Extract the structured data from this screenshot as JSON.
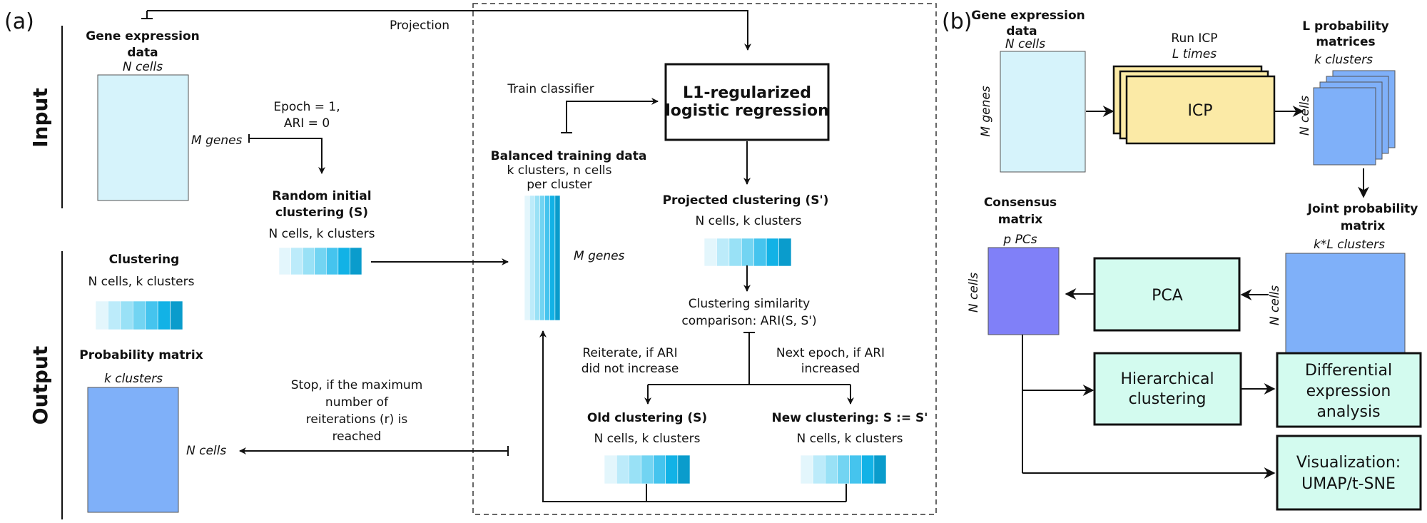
{
  "panel_a": {
    "label": "(a)",
    "input": "Input",
    "output": "Output",
    "projection": "Projection",
    "gene_expr_title_1": "Gene expression",
    "gene_expr_title_2": "data",
    "n_cells": "N cells",
    "m_genes": "M genes",
    "epoch_1": "Epoch = 1,",
    "epoch_2": "ARI = 0",
    "random_1": "Random initial",
    "random_2": "clustering (S)",
    "random_sub": "N cells, k clusters",
    "clustering_title": "Clustering",
    "clustering_sub": "N cells, k clusters",
    "prob_title": "Probability matrix",
    "prob_k": "k clusters",
    "prob_n": "N cells",
    "stop_1": "Stop, if the maximum",
    "stop_2": "number of",
    "stop_3": "reiterations (r) is",
    "stop_4": "reached",
    "train_classifier": "Train classifier",
    "l1_1": "L1-regularized",
    "l1_2": "logistic regression",
    "balanced_title": "Balanced training data",
    "balanced_sub_1": "k clusters, n cells",
    "balanced_sub_2": "per cluster",
    "balanced_genes": "M genes",
    "projected_title": "Projected clustering (S')",
    "projected_sub": "N cells, k clusters",
    "similarity_1": "Clustering similarity",
    "similarity_2": "comparison: ARI(S, S')",
    "reiterate_1": "Reiterate, if ARI",
    "reiterate_2": "did not increase",
    "next_1": "Next epoch, if ARI",
    "next_2": "increased",
    "old_title": "Old clustering (S)",
    "old_sub": "N cells, k clusters",
    "new_title": "New clustering: S := S'",
    "new_sub": "N cells, k clusters"
  },
  "panel_b": {
    "label": "(b)",
    "gene_expr_1": "Gene expression",
    "gene_expr_2": "data",
    "n_cells": "N cells",
    "m_genes": "M genes",
    "run_icp_1": "Run ICP",
    "run_icp_2": "L times",
    "icp": "ICP",
    "l_prob_1": "L probability",
    "l_prob_2": "matrices",
    "k_clusters": "k clusters",
    "n_cells_side": "N cells",
    "joint_1": "Joint probability",
    "joint_2": "matrix",
    "kl_clusters": "k*L clusters",
    "n_cells_joint": "N cells",
    "consensus_1": "Consensus",
    "consensus_2": "matrix",
    "p_pcs": "p PCs",
    "n_cells_consensus": "N cells",
    "pca": "PCA",
    "hier_1": "Hierarchical",
    "hier_2": "clustering",
    "diff_1": "Differential",
    "diff_2": "expression",
    "diff_3": "analysis",
    "vis_1": "Visualization:",
    "vis_2": "UMAP/t-SNE"
  },
  "colors": {
    "gene_matrix": "#d6f3fb",
    "prob_matrix": "#7fb0f9",
    "consensus": "#8080f8",
    "icp": "#fbeaa6",
    "teal_box": "#d3fbef",
    "strip": [
      "#e3f6fc",
      "#bcebfa",
      "#99e1f6",
      "#72d4f2",
      "#45c4ee",
      "#12b2e6",
      "#0a9ccc"
    ]
  }
}
